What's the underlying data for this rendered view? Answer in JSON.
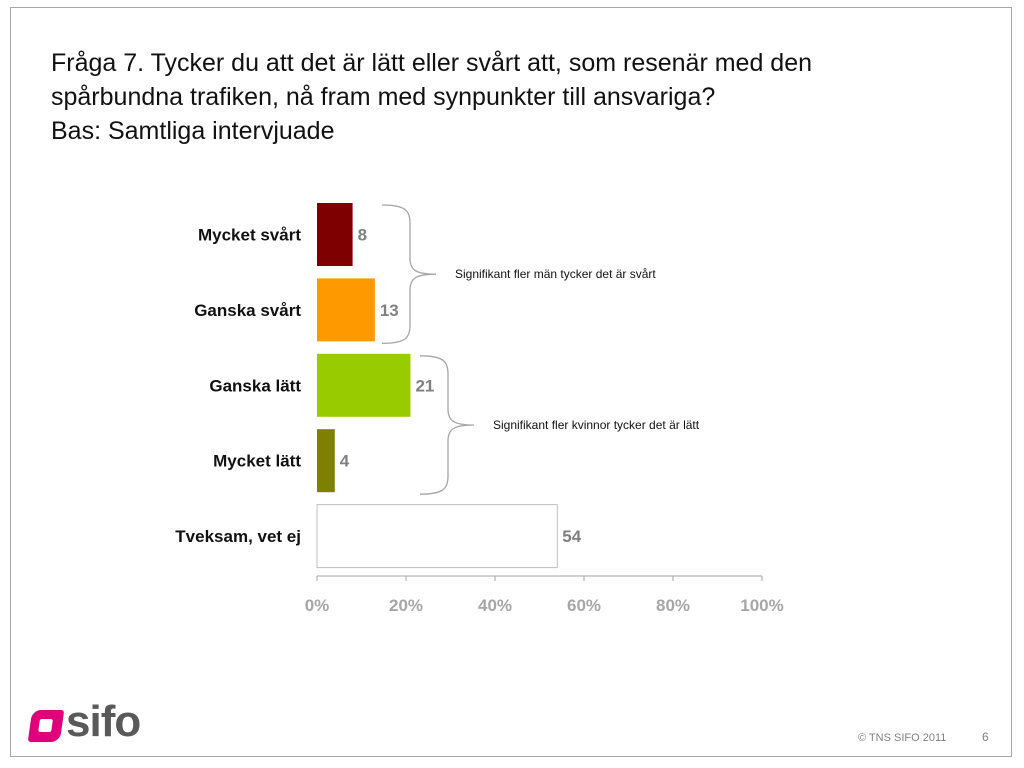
{
  "slide": {
    "title_lines": [
      "Fråga 7. Tycker du att det är lätt eller svårt att, som resenär med den",
      "spårbundna trafiken, nå fram med synpunkter till ansvariga?",
      "Bas: Samtliga intervjuade"
    ],
    "logo_text": "sifo",
    "copyright": "© TNS SIFO 2011",
    "page_number": "6"
  },
  "chart_data": {
    "type": "bar",
    "orientation": "horizontal",
    "categories": [
      "Mycket svårt",
      "Ganska svårt",
      "Ganska lätt",
      "Mycket lätt",
      "Tveksam, vet ej"
    ],
    "values": [
      8,
      13,
      21,
      4,
      54
    ],
    "value_labels": [
      "8",
      "13",
      "21",
      "4",
      "54"
    ],
    "colors": [
      "#7f0000",
      "#ff9900",
      "#99cc00",
      "#808000",
      "#ffffff"
    ],
    "xlim": [
      0,
      100
    ],
    "xticks": [
      0,
      20,
      40,
      60,
      80,
      100
    ],
    "xtick_labels": [
      "0%",
      "20%",
      "40%",
      "60%",
      "80%",
      "100%"
    ],
    "grid": false,
    "annotations": [
      {
        "text": "Signifikant fler män tycker det är svårt",
        "categories": [
          "Mycket svårt",
          "Ganska svårt"
        ]
      },
      {
        "text": "Signifikant fler  kvinnor tycker det är lätt",
        "categories": [
          "Ganska lätt",
          "Mycket lätt"
        ]
      }
    ]
  }
}
